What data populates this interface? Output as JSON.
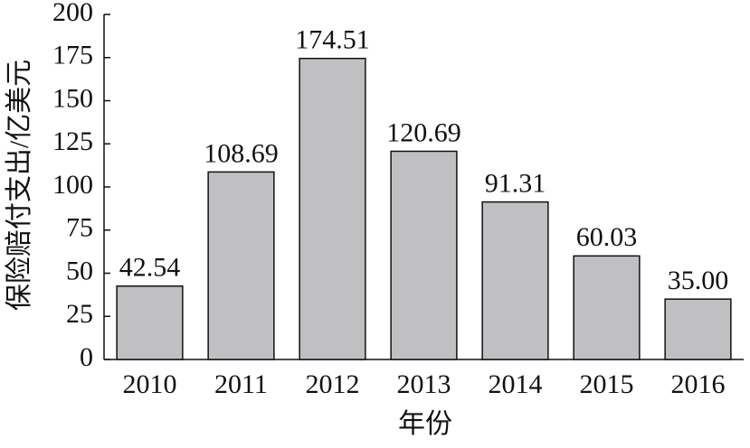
{
  "chart_data": {
    "type": "bar",
    "x_label": "年份",
    "y_label": "保险赔付支出/亿美元",
    "categories": [
      "2010",
      "2011",
      "2012",
      "2013",
      "2014",
      "2015",
      "2016"
    ],
    "values": [
      42.54,
      108.69,
      174.51,
      120.69,
      91.31,
      60.03,
      35.0
    ],
    "value_labels": [
      "42.54",
      "108.69",
      "174.51",
      "120.69",
      "91.31",
      "60.03",
      "35.00"
    ],
    "color": "#c0c0c2",
    "ylim": [
      0,
      200
    ],
    "yticks": [
      0,
      25,
      50,
      75,
      100,
      125,
      150,
      175,
      200
    ],
    "grid": false
  }
}
